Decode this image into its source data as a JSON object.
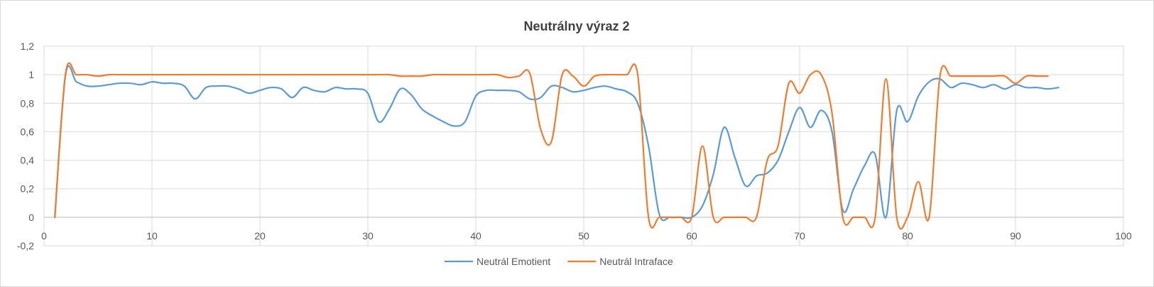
{
  "chart_data": {
    "type": "line",
    "title": "Neutrálny výraz 2",
    "xlabel": "",
    "ylabel": "",
    "xlim": [
      0,
      100
    ],
    "ylim": [
      -0.2,
      1.2
    ],
    "x_ticks": [
      "0",
      "10",
      "20",
      "30",
      "40",
      "50",
      "60",
      "70",
      "80",
      "90",
      "100"
    ],
    "x_tick_values": [
      0,
      10,
      20,
      30,
      40,
      50,
      60,
      70,
      80,
      90,
      100
    ],
    "y_ticks": [
      "-0,2",
      "0",
      "0,2",
      "0,4",
      "0,6",
      "0,8",
      "1",
      "1,2"
    ],
    "y_tick_values": [
      -0.2,
      0,
      0.2,
      0.4,
      0.6,
      0.8,
      1,
      1.2
    ],
    "grid": true,
    "legend_position": "bottom",
    "series": [
      {
        "name": "Neutrál Emotient",
        "color": "#5b9bd5",
        "x": [
          1,
          2,
          3,
          4,
          5,
          6,
          7,
          8,
          9,
          10,
          11,
          12,
          13,
          14,
          15,
          16,
          17,
          18,
          19,
          20,
          21,
          22,
          23,
          24,
          25,
          26,
          27,
          28,
          29,
          30,
          31,
          32,
          33,
          34,
          35,
          36,
          37,
          38,
          39,
          40,
          41,
          42,
          43,
          44,
          45,
          46,
          47,
          48,
          49,
          50,
          51,
          52,
          53,
          54,
          55,
          56,
          57,
          58,
          59,
          60,
          61,
          62,
          63,
          64,
          65,
          66,
          67,
          68,
          69,
          70,
          71,
          72,
          73,
          74,
          75,
          76,
          77,
          78,
          79,
          80,
          81,
          82,
          83,
          84,
          85,
          86,
          87,
          88,
          89,
          90,
          91,
          92,
          93,
          94
        ],
        "y": [
          0,
          1.0,
          0.95,
          0.92,
          0.92,
          0.93,
          0.94,
          0.94,
          0.93,
          0.95,
          0.94,
          0.94,
          0.92,
          0.83,
          0.91,
          0.92,
          0.92,
          0.9,
          0.87,
          0.89,
          0.91,
          0.9,
          0.84,
          0.91,
          0.89,
          0.88,
          0.91,
          0.9,
          0.9,
          0.87,
          0.67,
          0.76,
          0.9,
          0.86,
          0.76,
          0.71,
          0.67,
          0.64,
          0.67,
          0.85,
          0.89,
          0.89,
          0.89,
          0.88,
          0.83,
          0.84,
          0.92,
          0.91,
          0.88,
          0.89,
          0.91,
          0.92,
          0.9,
          0.88,
          0.8,
          0.5,
          0.02,
          0.0,
          0.0,
          0.0,
          0.08,
          0.3,
          0.63,
          0.42,
          0.22,
          0.29,
          0.31,
          0.4,
          0.6,
          0.77,
          0.63,
          0.75,
          0.6,
          0.05,
          0.2,
          0.36,
          0.44,
          0.0,
          0.75,
          0.67,
          0.85,
          0.95,
          0.97,
          0.91,
          0.94,
          0.93,
          0.91,
          0.93,
          0.9,
          0.93,
          0.91,
          0.91,
          0.9,
          0.91
        ]
      },
      {
        "name": "Neutrál Intraface",
        "color": "#ed7d31",
        "x": [
          1,
          2,
          3,
          4,
          5,
          6,
          7,
          8,
          9,
          10,
          11,
          12,
          13,
          14,
          15,
          16,
          17,
          18,
          19,
          20,
          21,
          22,
          23,
          24,
          25,
          26,
          27,
          28,
          29,
          30,
          31,
          32,
          33,
          34,
          35,
          36,
          37,
          38,
          39,
          40,
          41,
          42,
          43,
          44,
          45,
          46,
          47,
          48,
          49,
          50,
          51,
          52,
          53,
          54,
          55,
          56,
          57,
          58,
          59,
          60,
          61,
          62,
          63,
          64,
          65,
          66,
          67,
          68,
          69,
          70,
          71,
          72,
          73,
          74,
          75,
          76,
          77,
          78,
          79,
          80,
          81,
          82,
          83,
          84,
          85,
          86,
          87,
          88,
          89,
          90,
          91,
          92,
          93
        ],
        "y": [
          0,
          1.01,
          1.0,
          1.0,
          0.99,
          1.0,
          1.0,
          1.0,
          1.0,
          1.0,
          1.0,
          1.0,
          1.0,
          1.0,
          1.0,
          1.0,
          1.0,
          1.0,
          1.0,
          1.0,
          1.0,
          1.0,
          1.0,
          1.0,
          1.0,
          1.0,
          1.0,
          1.0,
          1.0,
          1.0,
          1.0,
          1.0,
          0.99,
          0.99,
          0.99,
          1.0,
          1.0,
          1.0,
          1.0,
          1.0,
          1.0,
          1.0,
          0.98,
          0.99,
          1.01,
          0.62,
          0.53,
          1.0,
          0.99,
          0.92,
          0.99,
          1.0,
          1.0,
          1.0,
          1.0,
          0.0,
          0.0,
          0.0,
          0.0,
          0.0,
          0.5,
          0.0,
          0.0,
          0.0,
          0.0,
          0.0,
          0.4,
          0.5,
          0.94,
          0.87,
          1.0,
          1.0,
          0.73,
          0.0,
          0.0,
          0.0,
          0.0,
          0.97,
          0.0,
          0.0,
          0.25,
          0.0,
          0.99,
          0.99,
          0.99,
          0.99,
          0.99,
          0.99,
          0.99,
          0.94,
          0.99,
          0.99,
          0.99
        ]
      }
    ]
  }
}
